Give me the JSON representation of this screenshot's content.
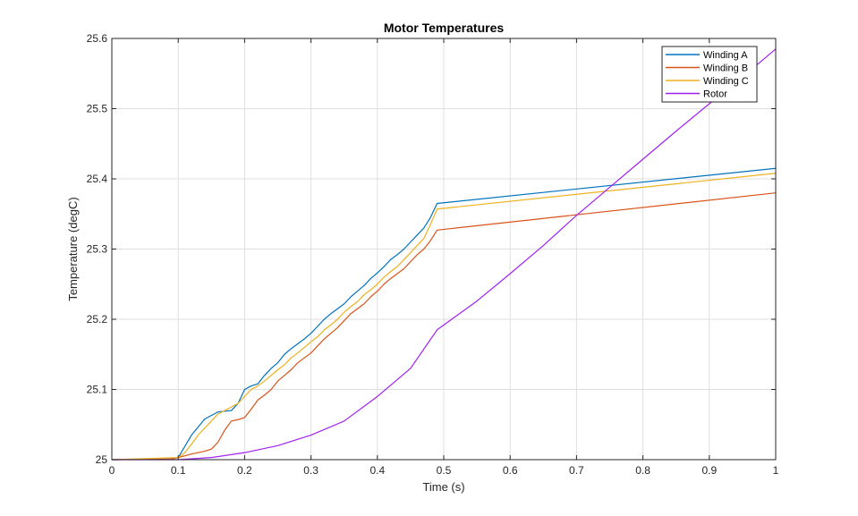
{
  "chart_data": {
    "type": "line",
    "title": "Motor Temperatures",
    "xlabel": "Time (s)",
    "ylabel": "Temperature (degC)",
    "xlim": [
      0,
      1
    ],
    "ylim": [
      25,
      25.6
    ],
    "xticks": [
      0,
      0.1,
      0.2,
      0.3,
      0.4,
      0.5,
      0.6,
      0.7,
      0.8,
      0.9,
      1
    ],
    "xtick_labels": [
      "0",
      "0.1",
      "0.2",
      "0.3",
      "0.4",
      "0.5",
      "0.6",
      "0.7",
      "0.8",
      "0.9",
      "1"
    ],
    "yticks": [
      25,
      25.1,
      25.2,
      25.3,
      25.4,
      25.5,
      25.6
    ],
    "ytick_labels": [
      "25",
      "25.1",
      "25.2",
      "25.3",
      "25.4",
      "25.5",
      "25.6"
    ],
    "grid": true,
    "legend_position": "top-right",
    "series": [
      {
        "name": "Winding A",
        "color": "#0072BD",
        "x": [
          0,
          0.09,
          0.1,
          0.12,
          0.14,
          0.16,
          0.17,
          0.18,
          0.19,
          0.2,
          0.21,
          0.22,
          0.23,
          0.24,
          0.25,
          0.26,
          0.27,
          0.28,
          0.29,
          0.3,
          0.31,
          0.32,
          0.33,
          0.34,
          0.35,
          0.36,
          0.37,
          0.38,
          0.39,
          0.4,
          0.41,
          0.42,
          0.43,
          0.44,
          0.45,
          0.46,
          0.47,
          0.48,
          0.49,
          1
        ],
        "y": [
          25.0,
          25.001,
          25.003,
          25.035,
          25.058,
          25.068,
          25.069,
          25.07,
          25.08,
          25.1,
          25.105,
          25.108,
          25.12,
          25.13,
          25.138,
          25.15,
          25.158,
          25.165,
          25.172,
          25.18,
          25.19,
          25.2,
          25.208,
          25.215,
          25.222,
          25.232,
          25.24,
          25.248,
          25.258,
          25.266,
          25.275,
          25.285,
          25.292,
          25.3,
          25.31,
          25.32,
          25.33,
          25.345,
          25.365,
          25.415
        ]
      },
      {
        "name": "Winding B",
        "color": "#D95319",
        "x": [
          0,
          0.09,
          0.1,
          0.12,
          0.14,
          0.15,
          0.16,
          0.17,
          0.18,
          0.19,
          0.2,
          0.21,
          0.22,
          0.23,
          0.24,
          0.25,
          0.26,
          0.27,
          0.28,
          0.29,
          0.3,
          0.31,
          0.32,
          0.33,
          0.34,
          0.35,
          0.36,
          0.37,
          0.38,
          0.39,
          0.4,
          0.41,
          0.42,
          0.43,
          0.44,
          0.45,
          0.46,
          0.47,
          0.48,
          0.49,
          1
        ],
        "y": [
          25.0,
          25.001,
          25.003,
          25.008,
          25.012,
          25.015,
          25.025,
          25.042,
          25.055,
          25.057,
          25.06,
          25.072,
          25.085,
          25.092,
          25.1,
          25.112,
          25.12,
          25.128,
          25.138,
          25.145,
          25.152,
          25.162,
          25.172,
          25.18,
          25.188,
          25.198,
          25.208,
          25.215,
          25.222,
          25.232,
          25.24,
          25.25,
          25.258,
          25.265,
          25.272,
          25.282,
          25.292,
          25.3,
          25.312,
          25.327,
          25.38
        ]
      },
      {
        "name": "Winding C",
        "color": "#EDB120",
        "x": [
          0,
          0.1,
          0.11,
          0.12,
          0.13,
          0.14,
          0.15,
          0.16,
          0.17,
          0.18,
          0.19,
          0.2,
          0.21,
          0.22,
          0.23,
          0.24,
          0.25,
          0.26,
          0.27,
          0.28,
          0.29,
          0.3,
          0.31,
          0.32,
          0.33,
          0.34,
          0.35,
          0.36,
          0.37,
          0.38,
          0.39,
          0.4,
          0.41,
          0.42,
          0.43,
          0.44,
          0.45,
          0.46,
          0.47,
          0.48,
          0.49,
          1
        ],
        "y": [
          25.0,
          25.003,
          25.01,
          25.022,
          25.035,
          25.045,
          25.055,
          25.065,
          25.07,
          25.075,
          25.08,
          25.09,
          25.1,
          25.105,
          25.112,
          25.12,
          25.128,
          25.135,
          25.145,
          25.152,
          25.16,
          25.168,
          25.175,
          25.185,
          25.192,
          25.2,
          25.21,
          25.218,
          25.225,
          25.235,
          25.242,
          25.25,
          25.26,
          25.268,
          25.275,
          25.285,
          25.295,
          25.305,
          25.315,
          25.335,
          25.357,
          25.408
        ]
      },
      {
        "name": "Rotor",
        "color": "#A020F0",
        "x": [
          0,
          0.1,
          0.15,
          0.2,
          0.25,
          0.3,
          0.35,
          0.4,
          0.45,
          0.49,
          0.55,
          0.6,
          0.65,
          0.7,
          0.75,
          0.8,
          0.85,
          0.9,
          0.95,
          1
        ],
        "y": [
          25.0,
          25.0,
          25.003,
          25.01,
          25.02,
          25.035,
          25.055,
          25.09,
          25.13,
          25.185,
          25.226,
          25.265,
          25.305,
          25.348,
          25.388,
          25.428,
          25.468,
          25.507,
          25.545,
          25.585
        ]
      }
    ]
  }
}
